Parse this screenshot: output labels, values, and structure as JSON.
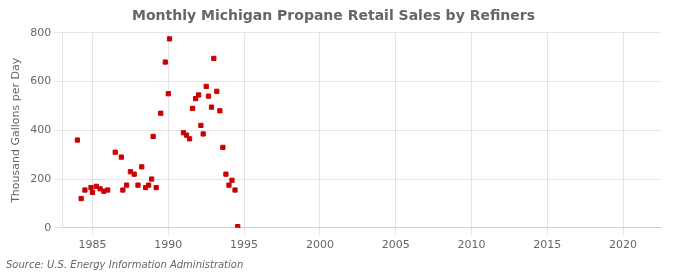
{
  "chart_data": {
    "type": "scatter",
    "title": "Monthly Michigan Propane Retail Sales by Refiners",
    "ylabel": "Thousand Gallons per Day",
    "annotations": [
      "Source: U.S. Energy Information Administration"
    ],
    "color": "#cc0000",
    "marker": "square",
    "grid": true,
    "xlim": [
      1983.0,
      2022.5
    ],
    "ylim": [
      0,
      800
    ],
    "xticks": [
      1985,
      1990,
      1995,
      2000,
      2005,
      2010,
      2015,
      2020
    ],
    "yticks": [
      0,
      200,
      400,
      600,
      800
    ],
    "x": [
      1984.0,
      1984.25,
      1984.5,
      1984.9,
      1985.0,
      1985.25,
      1985.5,
      1985.75,
      1986.0,
      1986.5,
      1986.9,
      1987.0,
      1987.25,
      1987.5,
      1987.75,
      1988.0,
      1988.25,
      1988.5,
      1988.7,
      1988.9,
      1989.0,
      1989.2,
      1989.5,
      1989.8,
      1990.0,
      1990.08,
      1991.0,
      1991.2,
      1991.4,
      1991.6,
      1991.8,
      1992.0,
      1992.15,
      1992.3,
      1992.5,
      1992.65,
      1992.85,
      1993.0,
      1993.2,
      1993.4,
      1993.6,
      1993.8,
      1994.0,
      1994.2,
      1994.4,
      1994.58
    ],
    "values": [
      360,
      120,
      155,
      165,
      145,
      170,
      160,
      150,
      155,
      310,
      290,
      155,
      175,
      230,
      220,
      175,
      250,
      165,
      175,
      200,
      375,
      165,
      470,
      680,
      550,
      775,
      390,
      380,
      365,
      490,
      530,
      545,
      420,
      385,
      580,
      540,
      495,
      695,
      560,
      480,
      330,
      220,
      175,
      195,
      155,
      5
    ]
  }
}
